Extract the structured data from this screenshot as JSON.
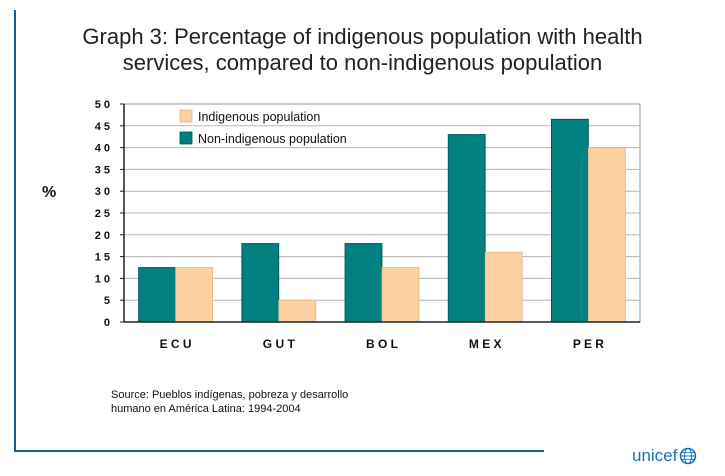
{
  "title_line1": "Graph 3: Percentage of indigenous population with health",
  "title_line2": "services, compared to non-indigenous population",
  "source_line1": "Source: Pueblos indígenas, pobreza y desarrollo",
  "source_line2": "humano en América Latina: 1994-2004",
  "logo_text": "unicef",
  "logo_icon": "unicef-globe-icon",
  "colors": {
    "indigenous": "#fcd09f",
    "non_indigenous": "#008080",
    "frame": "#1f5f8f"
  },
  "chart_data": {
    "type": "bar",
    "title": "Graph 3: Percentage of indigenous population with health services, compared to non-indigenous population",
    "ylabel": "%",
    "xlabel": "",
    "categories": [
      "E C U",
      "G U T",
      "B O L",
      "M E X",
      "P E R"
    ],
    "ylim": [
      0,
      50
    ],
    "yticks": [
      "0",
      "5",
      "1 0",
      "1 5",
      "2 0",
      "2 5",
      "3 0",
      "3 5",
      "4 0",
      "4 5",
      "5 0"
    ],
    "grid": true,
    "legend": "top-left",
    "series": [
      {
        "name": "Indigenous population",
        "values": [
          12.5,
          5,
          12.5,
          16,
          40
        ]
      },
      {
        "name": "Non-indigenous population",
        "values": [
          12.5,
          18,
          18,
          43,
          46.5
        ]
      }
    ]
  }
}
